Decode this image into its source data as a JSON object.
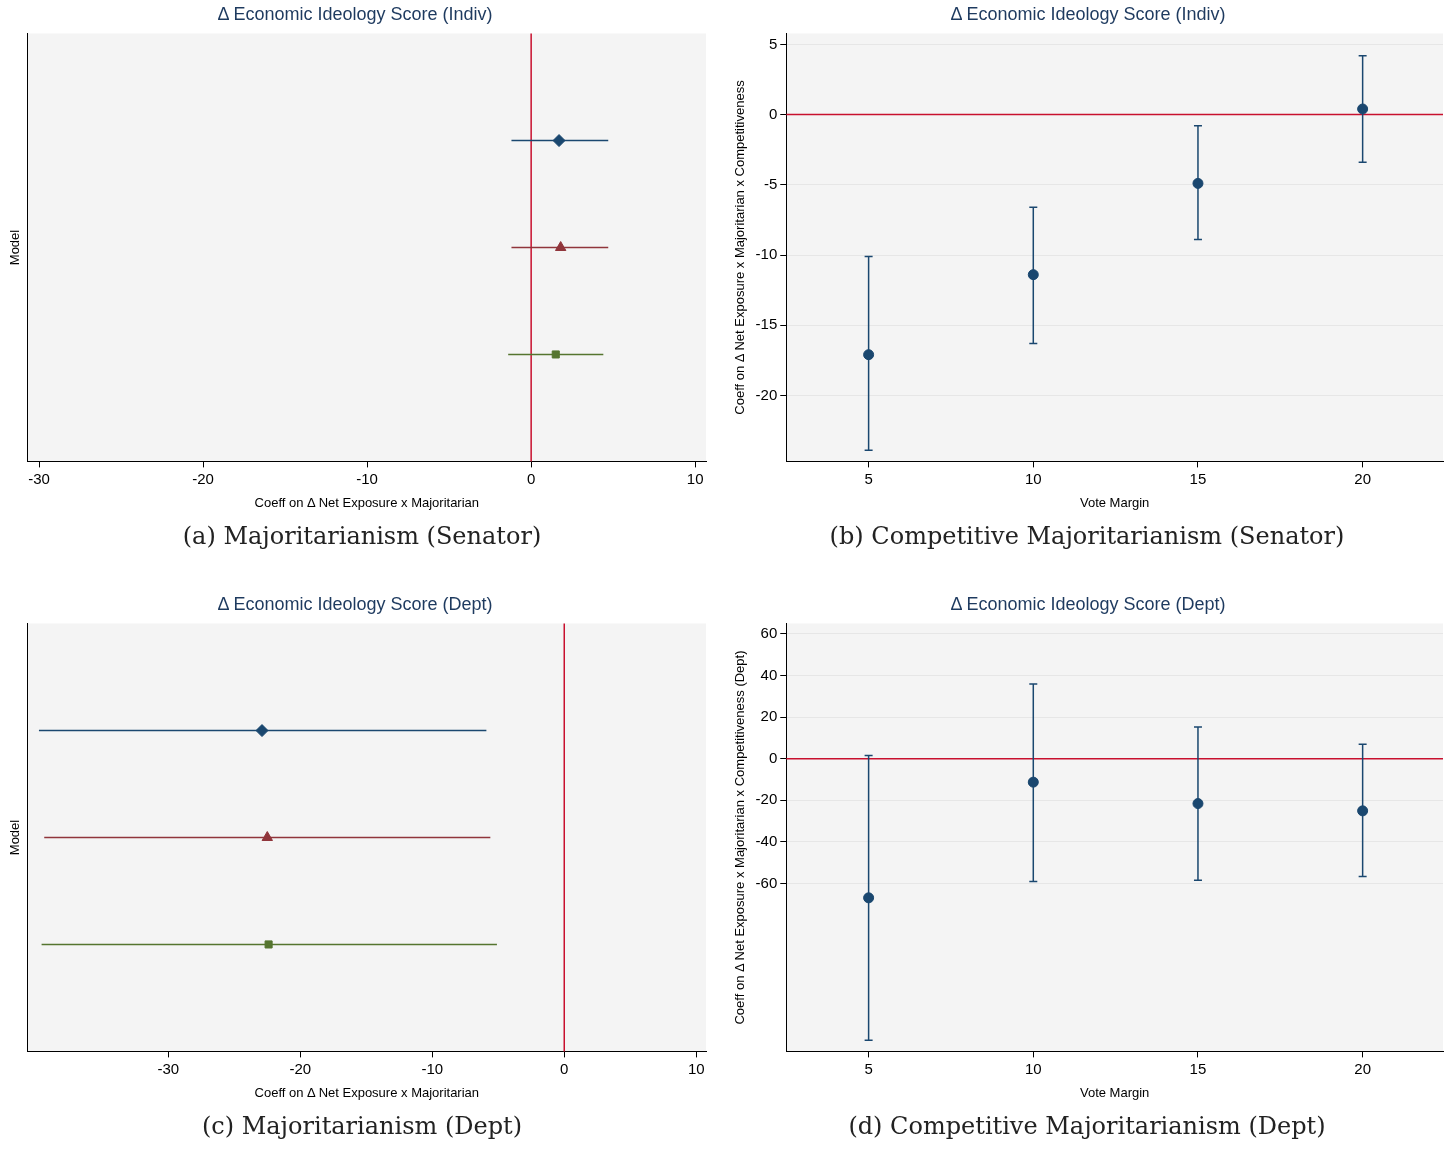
{
  "chart_data": [
    {
      "type": "scatter",
      "orientation": "horizontal",
      "title": "Δ Economic Ideology Score (Indiv)",
      "xlabel": "Coeff on Δ Net Exposure x Majoritarian",
      "ylabel": "Model",
      "categories": [
        null,
        null,
        null
      ],
      "xlim": [
        -30.7,
        10.66
      ],
      "xticks": [
        -30,
        -20,
        -10,
        0,
        10
      ],
      "legend": false,
      "series": [
        {
          "color": "#1a476f",
          "marker": "diamond",
          "values": [
            1.7,
            null,
            null
          ],
          "errors": [
            [
              -1.2,
              4.7
            ],
            null,
            null
          ]
        },
        {
          "color": "#90353b",
          "marker": "triangle",
          "values": [
            null,
            1.8,
            null
          ],
          "errors": [
            null,
            [
              -1.2,
              4.7
            ],
            null
          ]
        },
        {
          "color": "#55752f",
          "marker": "square",
          "values": [
            null,
            null,
            1.5
          ],
          "errors": [
            null,
            null,
            [
              -1.4,
              4.4
            ]
          ]
        }
      ],
      "ref_lines": [
        {
          "axis": "x",
          "value": 0,
          "color": "#c8102e"
        }
      ],
      "annotations": [
        "(a) Majoritarianism (Senator)"
      ]
    },
    {
      "type": "scatter",
      "title": "Δ Economic Ideology Score (Indiv)",
      "xlabel": "Vote Margin",
      "ylabel": "Coeff on Δ Net Exposure x Majoritarian x Competitiveness",
      "x": [
        5,
        10,
        15,
        20
      ],
      "xlim": [
        2.5,
        22.44
      ],
      "xticks": [
        5,
        10,
        15,
        20
      ],
      "ylim": [
        -24.7,
        5.77
      ],
      "yticks": [
        -20,
        -15,
        -10,
        -5,
        0,
        5
      ],
      "grid": "y",
      "legend": false,
      "marker": "circle",
      "series": [
        {
          "color": "#1a476f",
          "values": [
            -17.1,
            -11.4,
            -4.9,
            0.4
          ],
          "errors": [
            [
              -23.9,
              -10.1
            ],
            [
              -16.3,
              -6.6
            ],
            [
              -8.9,
              -0.8
            ],
            [
              -3.4,
              4.2
            ]
          ]
        }
      ],
      "ref_lines": [
        {
          "axis": "y",
          "value": 0,
          "color": "#c8102e"
        }
      ],
      "annotations": [
        "(b) Competitive Majoritarianism (Senator)"
      ]
    },
    {
      "type": "scatter",
      "orientation": "horizontal",
      "title": "Δ Economic Ideology Score (Dept)",
      "xlabel": "Coeff on Δ Net Exposure x Majoritarian",
      "ylabel": "Model",
      "categories": [
        null,
        null,
        null
      ],
      "xlim": [
        -40.66,
        10.74
      ],
      "xticks": [
        -30,
        -20,
        -10,
        0,
        10
      ],
      "legend": false,
      "series": [
        {
          "color": "#1a476f",
          "marker": "diamond",
          "values": [
            -22.9,
            null,
            null
          ],
          "errors": [
            [
              -39.8,
              -5.9
            ],
            null,
            null
          ]
        },
        {
          "color": "#90353b",
          "marker": "triangle",
          "values": [
            null,
            -22.5,
            null
          ],
          "errors": [
            null,
            [
              -39.4,
              -5.6
            ],
            null
          ]
        },
        {
          "color": "#55752f",
          "marker": "square",
          "values": [
            null,
            null,
            -22.4
          ],
          "errors": [
            null,
            null,
            [
              -39.6,
              -5.1
            ]
          ]
        }
      ],
      "ref_lines": [
        {
          "axis": "x",
          "value": 0,
          "color": "#c8102e"
        }
      ],
      "annotations": [
        "(c) Majoritarianism (Dept)"
      ]
    },
    {
      "type": "scatter",
      "title": "Δ Economic Ideology Score (Dept)",
      "xlabel": "Vote Margin",
      "ylabel": "Coeff on Δ Net Exposure x Majoritarian x Competitiveness (Dept)",
      "x": [
        5,
        10,
        15,
        20
      ],
      "xlim": [
        2.5,
        22.44
      ],
      "xticks": [
        5,
        10,
        15,
        20
      ],
      "ylim": [
        -140.7,
        64.9
      ],
      "yticks": [
        -60,
        -40,
        -20,
        0,
        20,
        40,
        60
      ],
      "grid": "y",
      "legend": false,
      "marker": "circle",
      "series": [
        {
          "color": "#1a476f",
          "values": [
            -66.9,
            -11.3,
            -21.6,
            -25.1
          ],
          "errors": [
            [
              -135.3,
              1.5
            ],
            [
              -59.0,
              35.9
            ],
            [
              -58.5,
              15.2
            ],
            [
              -56.6,
              6.9
            ]
          ]
        }
      ],
      "ref_lines": [
        {
          "axis": "y",
          "value": 0,
          "color": "#c8102e"
        }
      ],
      "annotations": [
        "(d) Competitive Majoritarianism (Dept)"
      ]
    }
  ]
}
